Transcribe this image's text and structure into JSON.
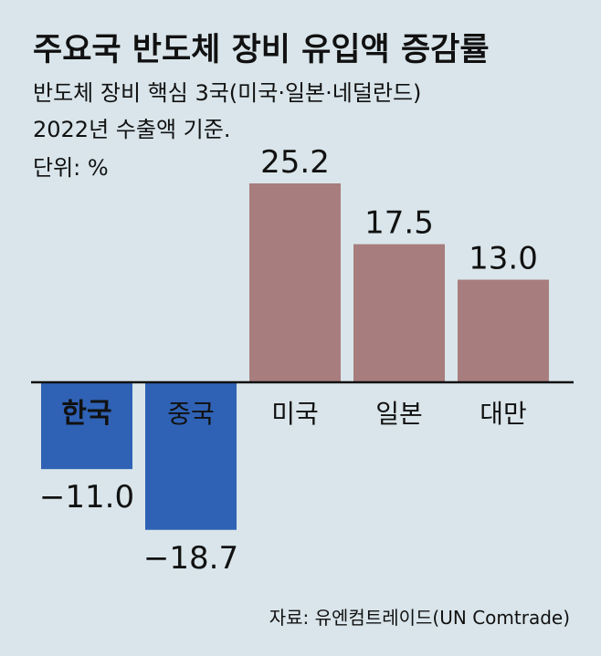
{
  "title": "주요국 반도체 장비 유입액 증감률",
  "subtitle_line1": "반도체 장비 핵심 3국(미국·일본·네덜란드)",
  "subtitle_line2": "2022년 수출액 기준.",
  "unit": "단위: %",
  "source": "자료: 유엔컴트레이드(UN Comtrade)",
  "colors": {
    "background": "#d9e5ea",
    "positive": "#a77d7d",
    "negative": "#2f62b5",
    "baseline": "#111111"
  },
  "chart_data": {
    "type": "bar",
    "categories": [
      "한국",
      "중국",
      "미국",
      "일본",
      "대만"
    ],
    "values": [
      -11.0,
      -18.7,
      25.2,
      17.5,
      13.0
    ],
    "value_labels": [
      "−11.0",
      "−18.7",
      "25.2",
      "17.5",
      "13.0"
    ],
    "highlight_category": "한국",
    "title": "주요국 반도체 장비 유입액 증감률",
    "xlabel": "",
    "ylabel": "",
    "unit": "%",
    "grid": false,
    "legend": "none"
  }
}
